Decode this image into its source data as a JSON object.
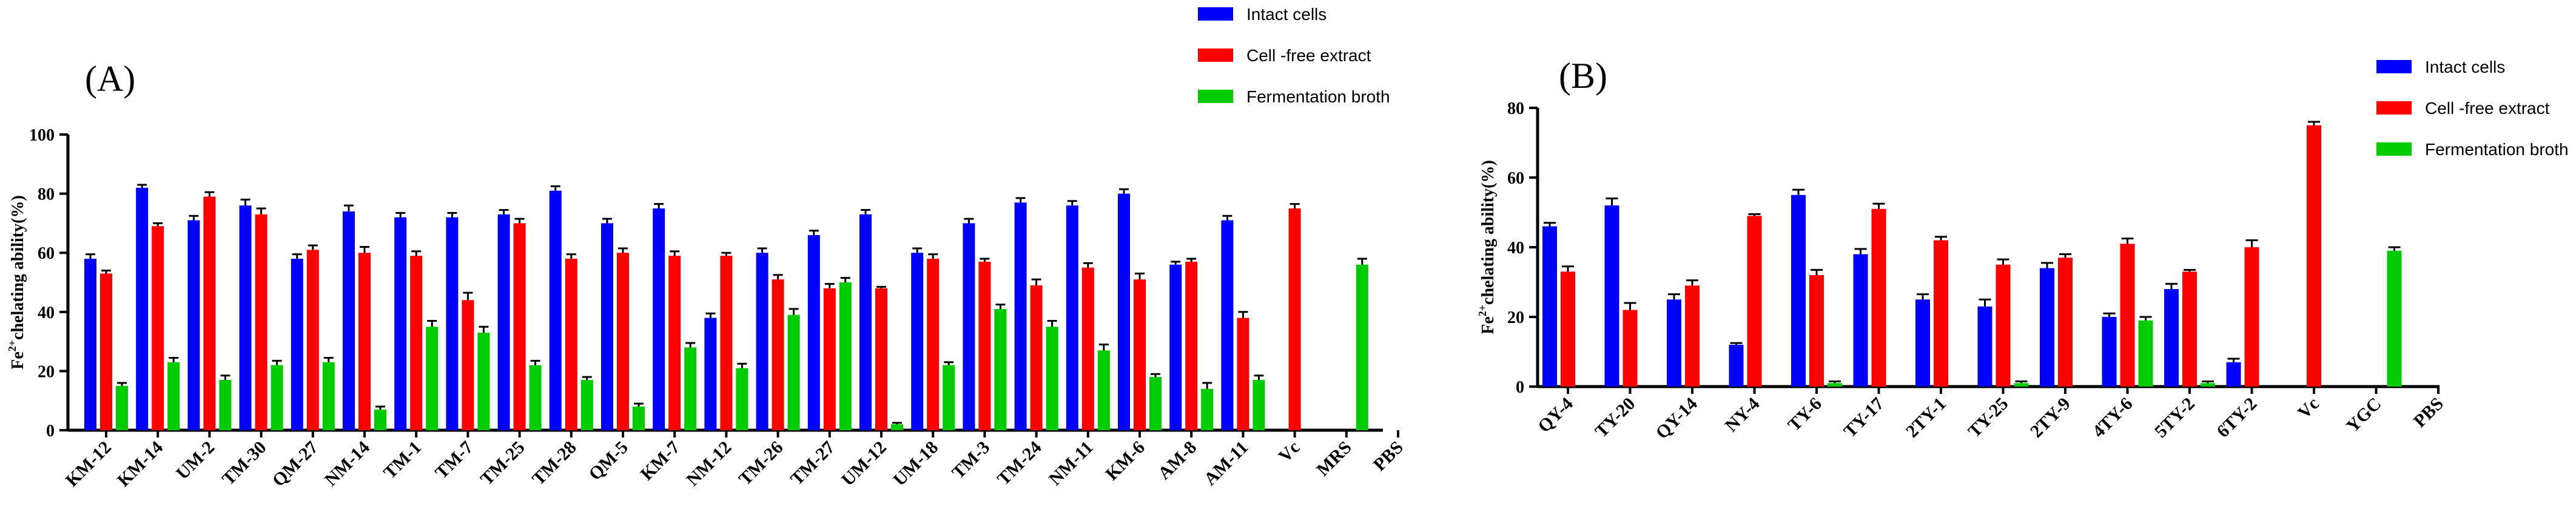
{
  "colors": {
    "intact": "#0000ff",
    "cfe": "#ff0000",
    "broth": "#00cc00",
    "axis": "#000000"
  },
  "chart_data": [
    {
      "type": "bar",
      "panel_label": "(A)",
      "ylabel_main": "chelating ability(%)",
      "ylabel_prefix": "Fe",
      "ylabel_sup": "2+",
      "ylim": [
        0,
        100
      ],
      "yticks": [
        0,
        20,
        40,
        60,
        80,
        100
      ],
      "legend_position": "top-right",
      "categories": [
        "KM-12",
        "KM-14",
        "UM-2",
        "TM-30",
        "QM-27",
        "NM-14",
        "TM-1",
        "TM-7",
        "TM-25",
        "TM-28",
        "QM-5",
        "KM-7",
        "NM-12",
        "TM-26",
        "TM-27",
        "UM-12",
        "UM-18",
        "TM-3",
        "TM-24",
        "NM-11",
        "KM-6",
        "AM-8",
        "AM-11",
        "Vc",
        "MRS",
        "PBS"
      ],
      "series": [
        {
          "name": "Intact cells",
          "key": "intact",
          "values": [
            58,
            82,
            71,
            76,
            58,
            74,
            72,
            72,
            73,
            81,
            70,
            75,
            38,
            60,
            66,
            73,
            60,
            70,
            77,
            76,
            80,
            56,
            71,
            null,
            null,
            null
          ],
          "errors": [
            1.5,
            1,
            1.5,
            2,
            1.5,
            2,
            1.5,
            1.5,
            1.5,
            1.5,
            1.5,
            1.5,
            1.5,
            1.5,
            1.5,
            1.5,
            1.5,
            1.5,
            1.5,
            1.5,
            1.5,
            1,
            1.5,
            0,
            0,
            0
          ]
        },
        {
          "name": "Cell -free extract",
          "key": "cfe",
          "values": [
            53,
            69,
            79,
            73,
            61,
            60,
            59,
            44,
            70,
            58,
            60,
            59,
            59,
            51,
            48,
            48,
            58,
            57,
            49,
            55,
            51,
            57,
            38,
            75,
            null,
            null
          ],
          "errors": [
            1,
            1,
            1.5,
            2,
            1.5,
            2,
            1.5,
            2.5,
            1.5,
            1.5,
            1.5,
            1.5,
            1,
            1.5,
            1.5,
            0.5,
            1.5,
            1,
            2,
            1.5,
            2,
            1,
            2,
            1.5,
            0,
            0
          ]
        },
        {
          "name": "Fermentation broth",
          "key": "broth",
          "values": [
            15,
            23,
            17,
            22,
            23,
            7,
            35,
            33,
            22,
            17,
            8,
            28,
            21,
            39,
            50,
            2,
            22,
            41,
            35,
            27,
            18,
            14,
            17,
            null,
            56,
            null
          ],
          "errors": [
            1,
            1.5,
            1.5,
            1.5,
            1.5,
            1,
            2,
            2,
            1.5,
            1,
            1,
            1.5,
            1.5,
            2,
            1.5,
            0.5,
            1,
            1.5,
            2,
            2,
            1,
            2,
            1.5,
            0,
            2,
            0
          ]
        }
      ]
    },
    {
      "type": "bar",
      "panel_label": "(B)",
      "ylabel_main": "chelating ability(%)",
      "ylabel_prefix": "Fe",
      "ylabel_sup": "2+",
      "ylim": [
        0,
        80
      ],
      "yticks": [
        0,
        20,
        40,
        60,
        80
      ],
      "legend_position": "top-right",
      "categories": [
        "QY-4",
        "TY-20",
        "QY-14",
        "NY-4",
        "TY-6",
        "TY-17",
        "2TY-1",
        "TY-25",
        "2TY-9",
        "4TY-6",
        "5TY-2",
        "6TY-2",
        "Vc",
        "YGC",
        "PBS"
      ],
      "series": [
        {
          "name": "Intact cells",
          "key": "intact",
          "values": [
            46,
            52,
            25,
            12,
            55,
            38,
            25,
            23,
            34,
            20,
            28,
            7,
            null,
            null,
            null
          ],
          "errors": [
            1,
            2,
            1.5,
            0.5,
            1.5,
            1.5,
            1.5,
            2,
            1.5,
            1,
            1.5,
            1,
            0,
            0,
            0
          ]
        },
        {
          "name": "Cell -free extract",
          "key": "cfe",
          "values": [
            33,
            22,
            29,
            49,
            32,
            51,
            42,
            35,
            37,
            41,
            33,
            40,
            75,
            null,
            null
          ],
          "errors": [
            1.5,
            2,
            1.5,
            0.5,
            1.5,
            1.5,
            1,
            1.5,
            1,
            1.5,
            0.5,
            2,
            1,
            0,
            0
          ]
        },
        {
          "name": "Fermentation broth",
          "key": "broth",
          "values": [
            null,
            null,
            null,
            null,
            1,
            null,
            null,
            1,
            null,
            19,
            1,
            null,
            null,
            39,
            null
          ],
          "errors": [
            0,
            0,
            0,
            0,
            0.5,
            0,
            0,
            0.5,
            0,
            1,
            0.5,
            0,
            0,
            1,
            0
          ]
        }
      ]
    }
  ]
}
